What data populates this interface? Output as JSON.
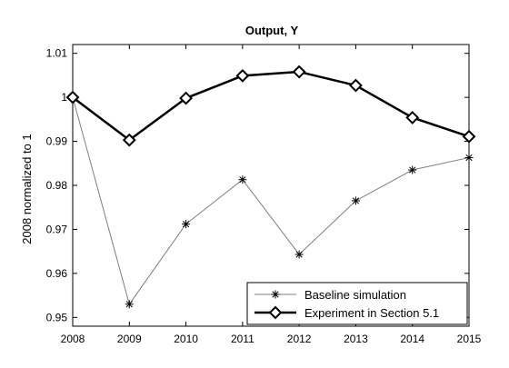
{
  "chart_data": {
    "type": "line",
    "title": "Output, Y",
    "xlabel": "",
    "ylabel": "2008 normalized to 1",
    "x": [
      2008,
      2009,
      2010,
      2011,
      2012,
      2013,
      2014,
      2015
    ],
    "xlim": [
      2008,
      2015
    ],
    "ylim": [
      0.948,
      1.012
    ],
    "xticks": [
      "2008",
      "2009",
      "2010",
      "2011",
      "2012",
      "2013",
      "2014",
      "2015"
    ],
    "yticks": [
      "0.95",
      "0.96",
      "0.97",
      "0.98",
      "0.99",
      "1",
      "1.01"
    ],
    "ytick_values": [
      0.95,
      0.96,
      0.97,
      0.98,
      0.99,
      1.0,
      1.01
    ],
    "grid": false,
    "legend_position": "bottom-right",
    "series": [
      {
        "name": "Baseline simulation",
        "values": [
          1.0,
          0.953,
          0.9712,
          0.9813,
          0.9643,
          0.9765,
          0.9835,
          0.9863
        ],
        "color": "#7f7f7f",
        "marker": "asterisk"
      },
      {
        "name": "Experiment in Section 5.1",
        "values": [
          1.0,
          0.9903,
          0.9998,
          1.0049,
          1.0058,
          1.0027,
          0.9954,
          0.9911
        ],
        "color": "#000000",
        "marker": "diamond"
      }
    ]
  }
}
